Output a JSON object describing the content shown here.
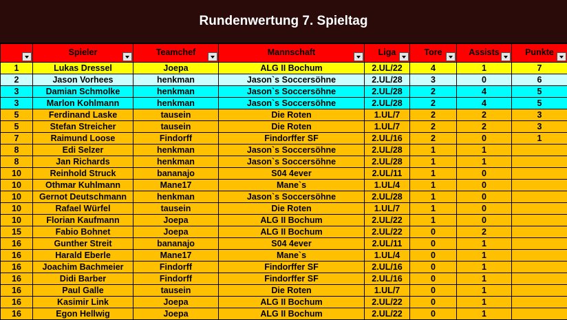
{
  "title": "Rundenwertung 7. Spieltag",
  "columns": [
    "",
    "Spieler",
    "Teamchef",
    "Mannschaft",
    "Liga",
    "Tore",
    "Assists",
    "Punkte"
  ],
  "colors": {
    "title_bg": "#2b0a0a",
    "header_bg": "#ff0000",
    "row_yellow": "#ffff00",
    "row_lightcyan": "#ccffff",
    "row_cyan": "#00ffff",
    "row_orange": "#ffc000"
  },
  "rows": [
    {
      "rank": "1",
      "spieler": "Lukas Dressel",
      "teamchef": "Joepa",
      "mannschaft": "ALG II Bochum",
      "liga": "2.UL/22",
      "tore": "4",
      "assists": "1",
      "punkte": "7",
      "color": "yellow"
    },
    {
      "rank": "2",
      "spieler": "Jason Vorhees",
      "teamchef": "henkman",
      "mannschaft": "Jason`s Soccersöhne",
      "liga": "2.UL/28",
      "tore": "3",
      "assists": "0",
      "punkte": "6",
      "color": "lightcyan"
    },
    {
      "rank": "3",
      "spieler": "Damian Schmolke",
      "teamchef": "henkman",
      "mannschaft": "Jason`s Soccersöhne",
      "liga": "2.UL/28",
      "tore": "2",
      "assists": "4",
      "punkte": "5",
      "color": "cyan"
    },
    {
      "rank": "3",
      "spieler": "Marlon Kohlmann",
      "teamchef": "henkman",
      "mannschaft": "Jason`s Soccersöhne",
      "liga": "2.UL/28",
      "tore": "2",
      "assists": "4",
      "punkte": "5",
      "color": "cyan"
    },
    {
      "rank": "5",
      "spieler": "Ferdinand Laske",
      "teamchef": "tausein",
      "mannschaft": "Die Roten",
      "liga": "1.UL/7",
      "tore": "2",
      "assists": "2",
      "punkte": "3",
      "color": "orange"
    },
    {
      "rank": "5",
      "spieler": "Stefan Streicher",
      "teamchef": "tausein",
      "mannschaft": "Die Roten",
      "liga": "1.UL/7",
      "tore": "2",
      "assists": "2",
      "punkte": "3",
      "color": "orange"
    },
    {
      "rank": "7",
      "spieler": "Raimund Loose",
      "teamchef": "Findorff",
      "mannschaft": "Findorffer SF",
      "liga": "2.UL/16",
      "tore": "2",
      "assists": "0",
      "punkte": "1",
      "color": "orange"
    },
    {
      "rank": "8",
      "spieler": "Edi Selzer",
      "teamchef": "henkman",
      "mannschaft": "Jason`s Soccersöhne",
      "liga": "2.UL/28",
      "tore": "1",
      "assists": "1",
      "punkte": "",
      "color": "orange"
    },
    {
      "rank": "8",
      "spieler": "Jan Richards",
      "teamchef": "henkman",
      "mannschaft": "Jason`s Soccersöhne",
      "liga": "2.UL/28",
      "tore": "1",
      "assists": "1",
      "punkte": "",
      "color": "orange"
    },
    {
      "rank": "10",
      "spieler": "Reinhold Struck",
      "teamchef": "bananajo",
      "mannschaft": "S04 4ever",
      "liga": "2.UL/11",
      "tore": "1",
      "assists": "0",
      "punkte": "",
      "color": "orange"
    },
    {
      "rank": "10",
      "spieler": "Othmar Kuhlmann",
      "teamchef": "Mane17",
      "mannschaft": "Mane`s",
      "liga": "1.UL/4",
      "tore": "1",
      "assists": "0",
      "punkte": "",
      "color": "orange"
    },
    {
      "rank": "10",
      "spieler": "Gernot Deutschmann",
      "teamchef": "henkman",
      "mannschaft": "Jason`s Soccersöhne",
      "liga": "2.UL/28",
      "tore": "1",
      "assists": "0",
      "punkte": "",
      "color": "orange"
    },
    {
      "rank": "10",
      "spieler": "Rafael Würfel",
      "teamchef": "tausein",
      "mannschaft": "Die Roten",
      "liga": "1.UL/7",
      "tore": "1",
      "assists": "0",
      "punkte": "",
      "color": "orange"
    },
    {
      "rank": "10",
      "spieler": "Florian Kaufmann",
      "teamchef": "Joepa",
      "mannschaft": "ALG II Bochum",
      "liga": "2.UL/22",
      "tore": "1",
      "assists": "0",
      "punkte": "",
      "color": "orange"
    },
    {
      "rank": "15",
      "spieler": "Fabio Bohnet",
      "teamchef": "Joepa",
      "mannschaft": "ALG II Bochum",
      "liga": "2.UL/22",
      "tore": "0",
      "assists": "2",
      "punkte": "",
      "color": "orange"
    },
    {
      "rank": "16",
      "spieler": "Gunther Streit",
      "teamchef": "bananajo",
      "mannschaft": "S04 4ever",
      "liga": "2.UL/11",
      "tore": "0",
      "assists": "1",
      "punkte": "",
      "color": "orange"
    },
    {
      "rank": "16",
      "spieler": "Harald Eberle",
      "teamchef": "Mane17",
      "mannschaft": "Mane`s",
      "liga": "1.UL/4",
      "tore": "0",
      "assists": "1",
      "punkte": "",
      "color": "orange"
    },
    {
      "rank": "16",
      "spieler": "Joachim Bachmeier",
      "teamchef": "Findorff",
      "mannschaft": "Findorffer SF",
      "liga": "2.UL/16",
      "tore": "0",
      "assists": "1",
      "punkte": "",
      "color": "orange"
    },
    {
      "rank": "16",
      "spieler": "Didi Barber",
      "teamchef": "Findorff",
      "mannschaft": "Findorffer SF",
      "liga": "2.UL/16",
      "tore": "0",
      "assists": "1",
      "punkte": "",
      "color": "orange"
    },
    {
      "rank": "16",
      "spieler": "Paul Galle",
      "teamchef": "tausein",
      "mannschaft": "Die Roten",
      "liga": "1.UL/7",
      "tore": "0",
      "assists": "1",
      "punkte": "",
      "color": "orange"
    },
    {
      "rank": "16",
      "spieler": "Kasimir Link",
      "teamchef": "Joepa",
      "mannschaft": "ALG II Bochum",
      "liga": "2.UL/22",
      "tore": "0",
      "assists": "1",
      "punkte": "",
      "color": "orange"
    },
    {
      "rank": "16",
      "spieler": "Egon Hellwig",
      "teamchef": "Joepa",
      "mannschaft": "ALG II Bochum",
      "liga": "2.UL/22",
      "tore": "0",
      "assists": "1",
      "punkte": "",
      "color": "orange"
    }
  ]
}
